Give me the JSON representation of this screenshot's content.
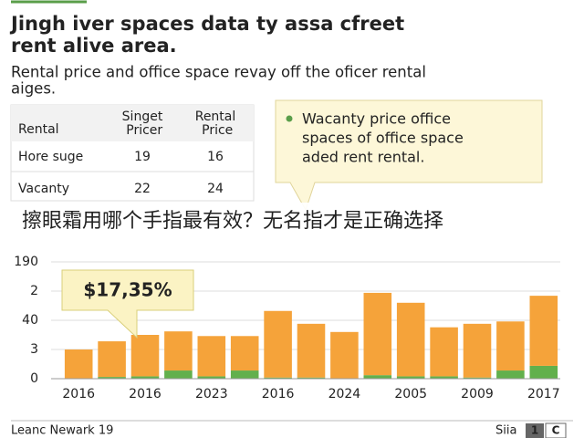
{
  "header": {
    "title_lines": [
      "Jingh iver spaces data ty assa cfreet",
      "rent alive area."
    ],
    "subtitle_lines": [
      "Rental price and office space revay off the oficer rental",
      "aiges."
    ]
  },
  "table": {
    "header": [
      "Rental",
      "Singet Pricer",
      "Rental Price"
    ],
    "rows": [
      [
        "Hore suge",
        19,
        16
      ],
      [
        "Vacanty",
        22,
        24
      ]
    ]
  },
  "note": {
    "text_lines": [
      "Wacanty price office",
      "spaces of office space",
      "aded rent rental."
    ]
  },
  "overlay": "擦眼霜用哪个手指最有效？无名指才是正确选择",
  "chart_data": {
    "type": "stacked_bar",
    "annotation": "$17,35%",
    "categories": [
      "2016",
      null,
      "2016",
      null,
      "2023",
      null,
      "2016",
      null,
      "2024",
      null,
      "2005",
      null,
      "2009",
      null,
      "2017"
    ],
    "series": [
      {
        "color": "#62b04c",
        "values": [
          0,
          1.5,
          2,
          7,
          2,
          7,
          1,
          1,
          0,
          3,
          2,
          2,
          1,
          7,
          11
        ]
      },
      {
        "color": "#f5a33a",
        "values": [
          25,
          30.5,
          35.5,
          33.5,
          34.5,
          29.5,
          57,
          46,
          40,
          70.5,
          63,
          42,
          46,
          42,
          60
        ]
      }
    ],
    "ylim": [
      0,
      100
    ],
    "yticks": [
      0,
      {
        "value": 25,
        "label": "3"
      },
      {
        "value": 50,
        "label": "40"
      },
      {
        "value": 75,
        "label": "2"
      },
      {
        "value": 100,
        "label": "190"
      }
    ],
    "grid": true
  },
  "footer": {
    "left": "Leanc Newark 19",
    "right": "Siia",
    "badges": [
      "1",
      "C"
    ]
  }
}
